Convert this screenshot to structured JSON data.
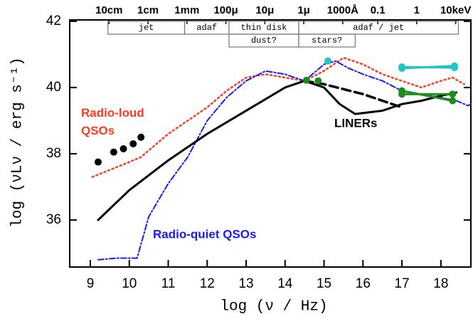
{
  "chart_data": {
    "type": "line",
    "xlabel": "log (ν / Hz)",
    "ylabel": "log (νLν / erg s⁻¹)",
    "xlim": [
      8.47,
      18.77
    ],
    "ylim": [
      34.58,
      42.04
    ],
    "xticks": [
      9,
      10,
      11,
      12,
      13,
      14,
      15,
      16,
      17,
      18
    ],
    "yticks": [
      36,
      38,
      40,
      42
    ],
    "x2ticks": [
      {
        "value": 9.48,
        "label": "10cm"
      },
      {
        "value": 10.48,
        "label": "1cm"
      },
      {
        "value": 11.48,
        "label": "1mm"
      },
      {
        "value": 12.48,
        "label": "100μ"
      },
      {
        "value": 13.48,
        "label": "10μ"
      },
      {
        "value": 14.48,
        "label": "1μ"
      },
      {
        "value": 15.48,
        "label": "1000Å"
      },
      {
        "value": 16.38,
        "label": "0.1"
      },
      {
        "value": 17.38,
        "label": "1"
      },
      {
        "value": 18.38,
        "label": "10keV"
      }
    ],
    "bands": [
      {
        "label": "jet",
        "from": 9.45,
        "to": 11.42,
        "row": 0
      },
      {
        "label": "adaf",
        "from": 11.42,
        "to": 12.56,
        "row": 0
      },
      {
        "label": "thin disk",
        "from": 12.56,
        "to": 14.35,
        "row": 0
      },
      {
        "label": "dust?",
        "from": 12.56,
        "to": 14.35,
        "row": 1
      },
      {
        "label": "stars?",
        "from": 14.35,
        "to": 15.8,
        "row": 1
      },
      {
        "label": "adaf / jet",
        "from": 14.35,
        "to": 18.45,
        "row": 0
      }
    ],
    "series": [
      {
        "name": "Radio-loud QSOs",
        "color": "#ff3b1f",
        "style": "dotted",
        "x": [
          9.05,
          10.0,
          10.3,
          11.0,
          12.0,
          12.5,
          13.0,
          13.5,
          14.0,
          14.5,
          15.0,
          15.5,
          16.0,
          16.5,
          17.0,
          17.5,
          18.0,
          18.3,
          18.6
        ],
        "values": [
          37.3,
          37.75,
          37.9,
          38.6,
          39.4,
          39.9,
          40.3,
          40.4,
          40.3,
          40.2,
          40.5,
          40.9,
          40.7,
          40.4,
          40.2,
          40.0,
          40.2,
          40.3,
          40.1
        ]
      },
      {
        "name": "Radio-quiet QSOs",
        "color": "#1a1aff",
        "style": "dashdot",
        "x": [
          9.2,
          9.7,
          10.2,
          10.5,
          11.0,
          11.5,
          12.0,
          12.5,
          13.0,
          13.5,
          14.0,
          14.5,
          15.0,
          15.3,
          15.6,
          16.0,
          16.5,
          17.0,
          17.5,
          18.0,
          18.4,
          18.7,
          18.77
        ],
        "values": [
          34.8,
          34.85,
          34.85,
          36.1,
          37.1,
          37.9,
          39.0,
          39.7,
          40.2,
          40.5,
          40.4,
          40.2,
          40.7,
          40.8,
          40.6,
          40.4,
          40.2,
          39.9,
          39.8,
          39.7,
          39.6,
          39.45,
          39.5
        ]
      },
      {
        "name": "LINERs",
        "color": "#000000",
        "style": "solid",
        "x": [
          9.2,
          10.0,
          11.0,
          12.0,
          13.0,
          14.0,
          14.5,
          15.0,
          15.4,
          15.8,
          16.5,
          17.0,
          17.5,
          18.0,
          18.4
        ],
        "values": [
          36.0,
          36.9,
          37.8,
          38.6,
          39.3,
          40.0,
          40.2,
          40.0,
          39.5,
          39.2,
          39.3,
          39.5,
          39.6,
          39.75,
          39.85
        ]
      },
      {
        "color": "#000000",
        "style": "dashed",
        "x": [
          14.5,
          15.0,
          15.5,
          16.0,
          16.5,
          17.0
        ],
        "values": [
          40.2,
          40.1,
          39.95,
          39.8,
          39.6,
          39.4
        ]
      },
      {
        "color": "#000000",
        "style": "none",
        "marker": true,
        "x": [
          9.2,
          9.6,
          9.85,
          10.1,
          10.3
        ],
        "values": [
          37.75,
          38.05,
          38.15,
          38.3,
          38.5
        ]
      },
      {
        "color": "#1d8c1d",
        "style": "none",
        "marker": true,
        "x": [
          14.55,
          14.85
        ],
        "values": [
          40.22,
          40.2
        ]
      },
      {
        "color": "#1d8c1d",
        "style": "solid",
        "marker": true,
        "x": [
          17.0,
          18.3
        ],
        "values": [
          39.9,
          39.6
        ]
      },
      {
        "color": "#1d8c1d",
        "style": "solid",
        "marker": true,
        "x": [
          17.0,
          18.3
        ],
        "values": [
          39.8,
          39.8
        ]
      },
      {
        "color": "#22c4c4",
        "style": "none",
        "marker": true,
        "x": [
          15.1
        ],
        "values": [
          40.8
        ]
      },
      {
        "color": "#22c4c4",
        "style": "solid",
        "marker": true,
        "x": [
          17.0,
          18.35
        ],
        "values": [
          40.62,
          40.6
        ]
      },
      {
        "color": "#22c4c4",
        "style": "solid",
        "marker": true,
        "x": [
          17.0,
          18.35
        ],
        "values": [
          40.58,
          40.65
        ]
      }
    ]
  }
}
